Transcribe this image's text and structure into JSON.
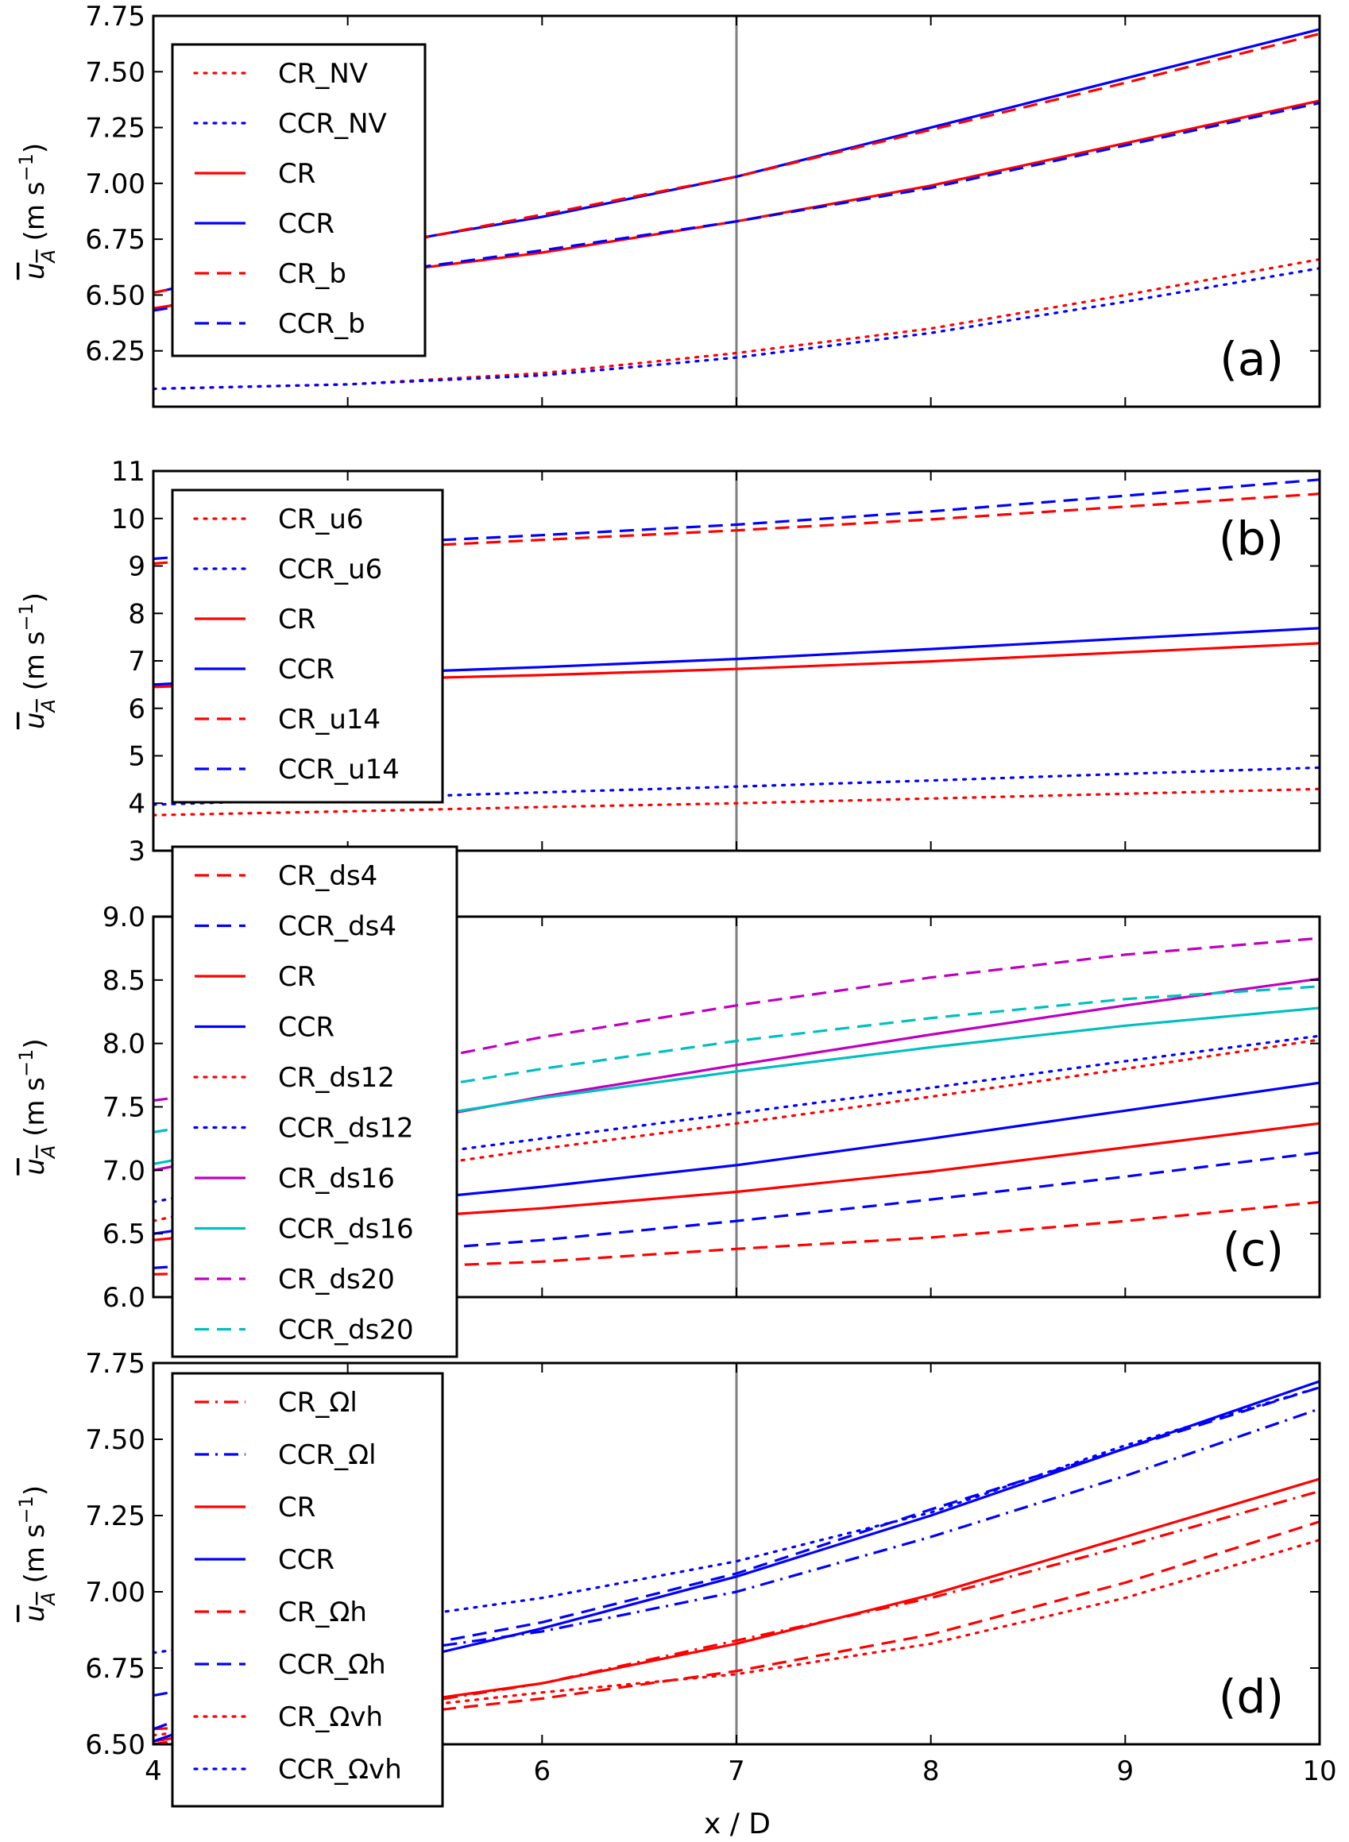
{
  "figure": {
    "xlabel": "x / D"
  },
  "chart_data": [
    {
      "type": "line",
      "panel_label": "(a)",
      "ylabel": "ū_A (m s⁻¹)",
      "xlim": [
        4,
        10
      ],
      "ylim": [
        6.0,
        7.75
      ],
      "xticks": [
        4,
        5,
        6,
        7,
        8,
        9,
        10
      ],
      "xtick_labels": [
        "",
        "",
        "",
        "",
        "",
        "",
        ""
      ],
      "yticks": [
        6.25,
        6.5,
        6.75,
        7.0,
        7.25,
        7.5,
        7.75
      ],
      "ytick_labels": [
        "6.25",
        "6.50",
        "6.75",
        "7.00",
        "7.25",
        "7.50",
        "7.75"
      ],
      "vline_x": 7,
      "legend_position": "upper-left",
      "series": [
        {
          "name": "CR_NV",
          "color": "#ff0000",
          "style": "dotted",
          "x": [
            4,
            5,
            6,
            7,
            8,
            9,
            10
          ],
          "values": [
            6.08,
            6.1,
            6.15,
            6.24,
            6.35,
            6.5,
            6.66
          ]
        },
        {
          "name": "CCR_NV",
          "color": "#0000ff",
          "style": "dotted",
          "x": [
            4,
            5,
            6,
            7,
            8,
            9,
            10
          ],
          "values": [
            6.08,
            6.1,
            6.14,
            6.22,
            6.33,
            6.47,
            6.62
          ]
        },
        {
          "name": "CR",
          "color": "#ff0000",
          "style": "solid",
          "x": [
            4,
            5,
            6,
            7,
            8,
            9,
            10
          ],
          "values": [
            6.44,
            6.58,
            6.69,
            6.83,
            6.99,
            7.18,
            7.37
          ]
        },
        {
          "name": "CCR",
          "color": "#0000ff",
          "style": "solid",
          "x": [
            4,
            5,
            6,
            7,
            8,
            9,
            10
          ],
          "values": [
            6.51,
            6.7,
            6.85,
            7.03,
            7.25,
            7.47,
            7.69
          ]
        },
        {
          "name": "CR_b",
          "color": "#ff0000",
          "style": "dashed",
          "x": [
            4,
            5,
            6,
            7,
            8,
            9,
            10
          ],
          "values": [
            6.51,
            6.69,
            6.86,
            7.03,
            7.24,
            7.45,
            7.67
          ]
        },
        {
          "name": "CCR_b",
          "color": "#0000ff",
          "style": "dashed",
          "x": [
            4,
            5,
            6,
            7,
            8,
            9,
            10
          ],
          "values": [
            6.43,
            6.58,
            6.7,
            6.83,
            6.98,
            7.17,
            7.36
          ]
        }
      ]
    },
    {
      "type": "line",
      "panel_label": "(b)",
      "ylabel": "ū_A (m s⁻¹)",
      "xlim": [
        4,
        10
      ],
      "ylim": [
        3,
        11
      ],
      "xticks": [
        4,
        5,
        6,
        7,
        8,
        9,
        10
      ],
      "xtick_labels": [
        "",
        "",
        "",
        "",
        "",
        "",
        ""
      ],
      "yticks": [
        3,
        4,
        5,
        6,
        7,
        8,
        9,
        10,
        11
      ],
      "ytick_labels": [
        "3",
        "4",
        "5",
        "6",
        "7",
        "8",
        "9",
        "10",
        "11"
      ],
      "vline_x": 7,
      "legend_position": "upper-left",
      "series": [
        {
          "name": "CR_u6",
          "color": "#ff0000",
          "style": "dotted",
          "x": [
            4,
            5,
            6,
            7,
            8,
            9,
            10
          ],
          "values": [
            3.75,
            3.83,
            3.92,
            4.0,
            4.1,
            4.2,
            4.3
          ]
        },
        {
          "name": "CCR_u6",
          "color": "#0000ff",
          "style": "dotted",
          "x": [
            4,
            5,
            6,
            7,
            8,
            9,
            10
          ],
          "values": [
            3.97,
            4.1,
            4.23,
            4.35,
            4.48,
            4.62,
            4.75
          ]
        },
        {
          "name": "CR",
          "color": "#ff0000",
          "style": "solid",
          "x": [
            4,
            5,
            6,
            7,
            8,
            9,
            10
          ],
          "values": [
            6.45,
            6.6,
            6.7,
            6.83,
            6.99,
            7.18,
            7.37
          ]
        },
        {
          "name": "CCR",
          "color": "#0000ff",
          "style": "solid",
          "x": [
            4,
            5,
            6,
            7,
            8,
            9,
            10
          ],
          "values": [
            6.5,
            6.72,
            6.87,
            7.04,
            7.25,
            7.47,
            7.69
          ]
        },
        {
          "name": "CR_u14",
          "color": "#ff0000",
          "style": "dashed",
          "x": [
            4,
            5,
            6,
            7,
            8,
            9,
            10
          ],
          "values": [
            9.05,
            9.35,
            9.55,
            9.75,
            9.98,
            10.25,
            10.52
          ]
        },
        {
          "name": "CCR_u14",
          "color": "#0000ff",
          "style": "dashed",
          "x": [
            4,
            5,
            6,
            7,
            8,
            9,
            10
          ],
          "values": [
            9.15,
            9.45,
            9.65,
            9.87,
            10.15,
            10.48,
            10.82
          ]
        }
      ]
    },
    {
      "type": "line",
      "panel_label": "(c)",
      "ylabel": "ū_A (m s⁻¹)",
      "xlim": [
        4,
        10
      ],
      "ylim": [
        6.0,
        9.0
      ],
      "xticks": [
        4,
        5,
        6,
        7,
        8,
        9,
        10
      ],
      "xtick_labels": [
        "",
        "",
        "",
        "",
        "",
        "",
        ""
      ],
      "yticks": [
        6.0,
        6.5,
        7.0,
        7.5,
        8.0,
        8.5,
        9.0
      ],
      "ytick_labels": [
        "6.0",
        "6.5",
        "7.0",
        "7.5",
        "8.0",
        "8.5",
        "9.0"
      ],
      "vline_x": 7,
      "legend_position": "upper-left",
      "series": [
        {
          "name": "CR_ds4",
          "color": "#ff0000",
          "style": "dashed",
          "x": [
            4,
            5,
            6,
            7,
            8,
            9,
            10
          ],
          "values": [
            6.18,
            6.22,
            6.28,
            6.38,
            6.47,
            6.6,
            6.75
          ]
        },
        {
          "name": "CCR_ds4",
          "color": "#0000ff",
          "style": "dashed",
          "x": [
            4,
            5,
            6,
            7,
            8,
            9,
            10
          ],
          "values": [
            6.23,
            6.33,
            6.45,
            6.6,
            6.77,
            6.95,
            7.14
          ]
        },
        {
          "name": "CR",
          "color": "#ff0000",
          "style": "solid",
          "x": [
            4,
            5,
            6,
            7,
            8,
            9,
            10
          ],
          "values": [
            6.45,
            6.6,
            6.7,
            6.83,
            6.99,
            7.18,
            7.37
          ]
        },
        {
          "name": "CCR",
          "color": "#0000ff",
          "style": "solid",
          "x": [
            4,
            5,
            6,
            7,
            8,
            9,
            10
          ],
          "values": [
            6.5,
            6.72,
            6.87,
            7.04,
            7.25,
            7.47,
            7.69
          ]
        },
        {
          "name": "CR_ds12",
          "color": "#ff0000",
          "style": "dotted",
          "x": [
            4,
            5,
            6,
            7,
            8,
            9,
            10
          ],
          "values": [
            6.6,
            6.95,
            7.17,
            7.37,
            7.58,
            7.8,
            8.03
          ]
        },
        {
          "name": "CCR_ds12",
          "color": "#0000ff",
          "style": "dotted",
          "x": [
            4,
            5,
            6,
            7,
            8,
            9,
            10
          ],
          "values": [
            6.75,
            7.05,
            7.25,
            7.45,
            7.65,
            7.86,
            8.06
          ]
        },
        {
          "name": "CR_ds16",
          "color": "#bf00bf",
          "style": "solid",
          "x": [
            4,
            5,
            6,
            7,
            8,
            9,
            10
          ],
          "values": [
            7.0,
            7.3,
            7.58,
            7.83,
            8.07,
            8.3,
            8.51
          ]
        },
        {
          "name": "CCR_ds16",
          "color": "#00bfbf",
          "style": "solid",
          "x": [
            4,
            5,
            6,
            7,
            8,
            9,
            10
          ],
          "values": [
            7.05,
            7.33,
            7.57,
            7.78,
            7.97,
            8.14,
            8.28
          ]
        },
        {
          "name": "CR_ds20",
          "color": "#bf00bf",
          "style": "dashed",
          "x": [
            4,
            5,
            6,
            7,
            8,
            9,
            10
          ],
          "values": [
            7.55,
            7.75,
            8.05,
            8.3,
            8.52,
            8.7,
            8.83
          ]
        },
        {
          "name": "CCR_ds20",
          "color": "#00bfbf",
          "style": "dashed",
          "x": [
            4,
            5,
            6,
            7,
            8,
            9,
            10
          ],
          "values": [
            7.3,
            7.55,
            7.8,
            8.02,
            8.2,
            8.35,
            8.45
          ]
        }
      ]
    },
    {
      "type": "line",
      "panel_label": "(d)",
      "ylabel": "ū_A (m s⁻¹)",
      "xlabel": "x / D",
      "xlim": [
        4,
        10
      ],
      "ylim": [
        6.5,
        7.75
      ],
      "xticks": [
        4,
        5,
        6,
        7,
        8,
        9,
        10
      ],
      "xtick_labels": [
        "4",
        "5",
        "6",
        "7",
        "8",
        "9",
        "10"
      ],
      "yticks": [
        6.5,
        6.75,
        7.0,
        7.25,
        7.5,
        7.75
      ],
      "ytick_labels": [
        "6.50",
        "6.75",
        "7.00",
        "7.25",
        "7.50",
        "7.75"
      ],
      "vline_x": 7,
      "legend_position": "upper-left",
      "series": [
        {
          "name": "CR_Ωl",
          "color": "#ff0000",
          "style": "dashdot",
          "x": [
            4,
            5,
            6,
            7,
            8,
            9,
            10
          ],
          "values": [
            6.5,
            6.6,
            6.7,
            6.84,
            6.98,
            7.15,
            7.33
          ]
        },
        {
          "name": "CCR_Ωl",
          "color": "#0000ff",
          "style": "dashdot",
          "x": [
            4,
            5,
            6,
            7,
            8,
            9,
            10
          ],
          "values": [
            6.66,
            6.78,
            6.87,
            7.0,
            7.18,
            7.38,
            7.6
          ]
        },
        {
          "name": "CR",
          "color": "#ff0000",
          "style": "solid",
          "x": [
            4,
            5,
            6,
            7,
            8,
            9,
            10
          ],
          "values": [
            6.51,
            6.61,
            6.7,
            6.83,
            6.99,
            7.18,
            7.37
          ]
        },
        {
          "name": "CCR",
          "color": "#0000ff",
          "style": "solid",
          "x": [
            4,
            5,
            6,
            7,
            8,
            9,
            10
          ],
          "values": [
            6.51,
            6.73,
            6.88,
            7.05,
            7.25,
            7.47,
            7.69
          ]
        },
        {
          "name": "CR_Ωh",
          "color": "#ff0000",
          "style": "dashed",
          "x": [
            4,
            5,
            6,
            7,
            8,
            9,
            10
          ],
          "values": [
            6.55,
            6.58,
            6.65,
            6.74,
            6.86,
            7.03,
            7.23
          ]
        },
        {
          "name": "CCR_Ωh",
          "color": "#0000ff",
          "style": "dashed",
          "x": [
            4,
            5,
            6,
            7,
            8,
            9,
            10
          ],
          "values": [
            6.55,
            6.78,
            6.9,
            7.06,
            7.27,
            7.47,
            7.67
          ]
        },
        {
          "name": "CR_Ωvh",
          "color": "#ff0000",
          "style": "dotted",
          "x": [
            4,
            5,
            6,
            7,
            8,
            9,
            10
          ],
          "values": [
            6.53,
            6.6,
            6.67,
            6.73,
            6.83,
            6.98,
            7.17
          ]
        },
        {
          "name": "CCR_Ωvh",
          "color": "#0000ff",
          "style": "dotted",
          "x": [
            4,
            5,
            6,
            7,
            8,
            9,
            10
          ],
          "values": [
            6.8,
            6.89,
            6.98,
            7.1,
            7.26,
            7.48,
            7.67
          ]
        }
      ]
    }
  ]
}
